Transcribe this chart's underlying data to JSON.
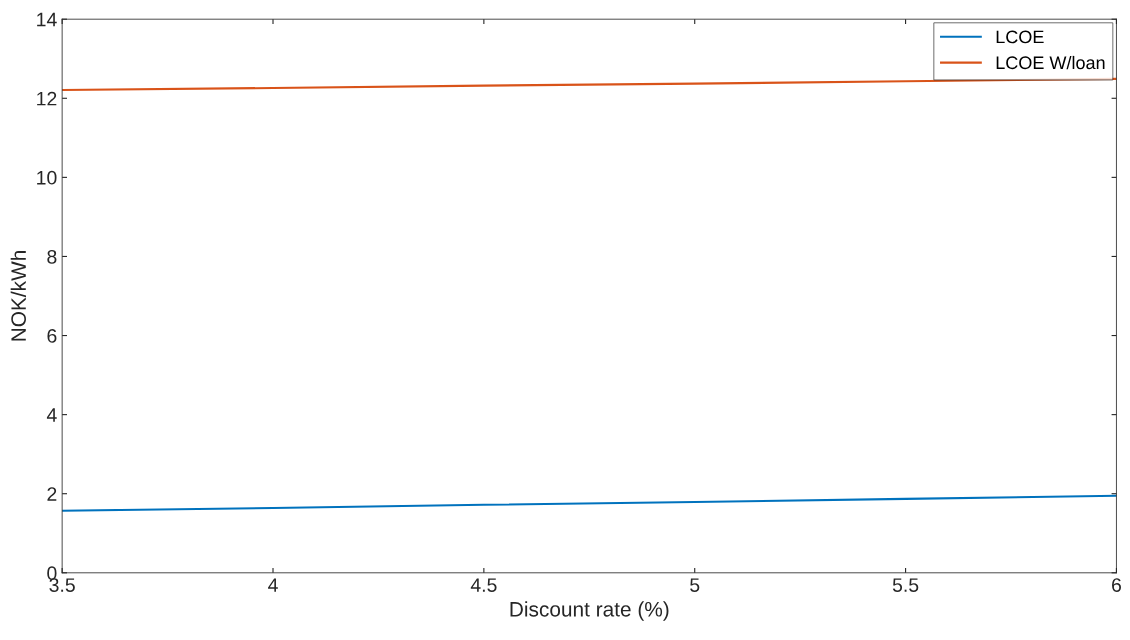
{
  "chart_data": {
    "type": "line",
    "xlabel": "Discount rate (%)",
    "ylabel": "NOK/kWh",
    "series": [
      {
        "name": "LCOE",
        "color": "#0072bd",
        "x": [
          3.5,
          4,
          4.5,
          5,
          5.5,
          6
        ],
        "values": [
          1.57,
          1.64,
          1.72,
          1.79,
          1.87,
          1.95
        ]
      },
      {
        "name": "LCOE W/loan",
        "color": "#d95319",
        "x": [
          3.5,
          4,
          4.5,
          5,
          5.5,
          6
        ],
        "values": [
          12.21,
          12.26,
          12.32,
          12.37,
          12.43,
          12.49
        ]
      }
    ],
    "xlim": [
      3.5,
      6
    ],
    "xticks": [
      3.5,
      4,
      4.5,
      5,
      5.5,
      6
    ],
    "ylim": [
      0,
      14
    ],
    "yticks": [
      0,
      2,
      4,
      6,
      8,
      10,
      12,
      14
    ],
    "grid": false,
    "legend": "top right",
    "marker": "none",
    "line_style": "solid"
  }
}
